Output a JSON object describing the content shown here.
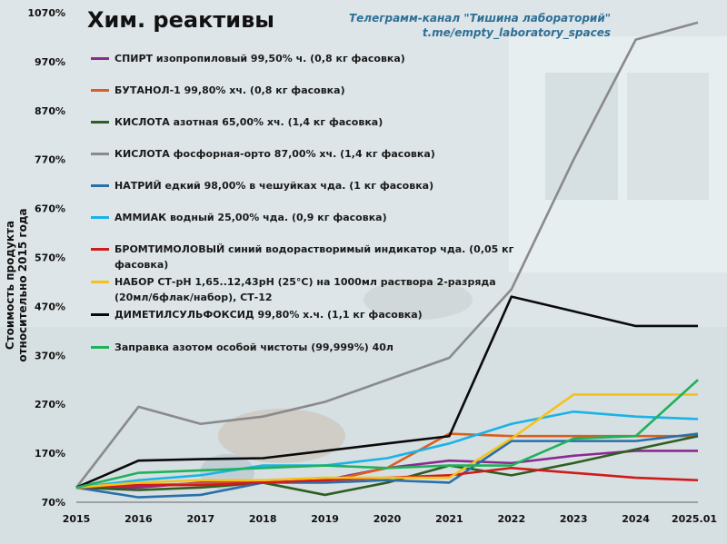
{
  "header": {
    "title": "Хим. реактивы",
    "credit_line1": "Телеграмм-канал \"Тишина лабораторий\"",
    "credit_line2": "t.me/empty_laboratory_spaces"
  },
  "chart_data": {
    "type": "line",
    "title": "Хим. реактивы",
    "xlabel": "",
    "ylabel": "Стоимость продукта относительно 2015 года",
    "x": [
      "2015",
      "2016",
      "2017",
      "2018",
      "2019",
      "2020",
      "2021",
      "2022",
      "2023",
      "2024",
      "2025.01"
    ],
    "ylim": [
      70,
      1070
    ],
    "y_ticks": [
      "70%",
      "170%",
      "270%",
      "370%",
      "470%",
      "570%",
      "670%",
      "770%",
      "870%",
      "970%",
      "1070%"
    ],
    "grid": false,
    "legend_position": "top-left",
    "series": [
      {
        "name": "СПИРТ изопропиловый 99,50% ч. (0,8 кг фасовка)",
        "color": "#8b2a8f",
        "values": [
          100,
          100,
          110,
          110,
          115,
          140,
          155,
          150,
          165,
          175,
          175
        ]
      },
      {
        "name": "БУТАНОЛ-1 99,80% хч. (0,8 кг фасовка)",
        "color": "#d95f1e",
        "values": [
          100,
          105,
          108,
          110,
          112,
          140,
          210,
          205,
          205,
          205,
          205
        ]
      },
      {
        "name": "КИСЛОТА азотная 65,00% хч. (1,4 кг фасовка)",
        "color": "#2e5e22",
        "values": [
          100,
          95,
          100,
          110,
          85,
          110,
          145,
          125,
          150,
          178,
          205
        ]
      },
      {
        "name": "КИСЛОТА фосфорная-орто 87,00% хч. (1,4 кг фасовка)",
        "color": "#8a8a8a",
        "values": [
          100,
          265,
          230,
          245,
          275,
          320,
          365,
          505,
          770,
          1015,
          1050
        ]
      },
      {
        "name": "НАТРИЙ едкий 98,00% в чешуйках чда. (1 кг фасовка)",
        "color": "#2a6fa8",
        "values": [
          100,
          80,
          85,
          110,
          110,
          115,
          110,
          195,
          195,
          195,
          210
        ]
      },
      {
        "name": "АММИАК водный 25,00% чда. (0,9 кг фасовка)",
        "color": "#19b3e6",
        "values": [
          100,
          115,
          125,
          145,
          145,
          160,
          190,
          230,
          255,
          245,
          240
        ]
      },
      {
        "name": "БРОМТИМОЛОВЫЙ синий водорастворимый индикатор чда. (0,05 кг фасовка)",
        "color": "#d11a1a",
        "values": [
          100,
          105,
          105,
          110,
          115,
          120,
          125,
          140,
          130,
          120,
          115
        ]
      },
      {
        "name": "НАБОР СТ-pH 1,65..12,43pH (25°C) на 1000мл раствора 2-разряда (20мл/6флак/набор), СТ-12",
        "color": "#f4c21a",
        "values": [
          100,
          110,
          115,
          115,
          120,
          120,
          120,
          200,
          290,
          290,
          290
        ]
      },
      {
        "name": "ДИМЕТИЛСУЛЬФОКСИД 99,80% х.ч. (1,1 кг фасовка)",
        "color": "#0a0a0a",
        "values": [
          100,
          155,
          158,
          160,
          175,
          190,
          205,
          490,
          460,
          430,
          430
        ]
      },
      {
        "name": "Заправка азотом особой чистоты (99,999%) 40л",
        "color": "#1fb25a",
        "values": [
          100,
          130,
          135,
          140,
          145,
          140,
          145,
          145,
          200,
          205,
          320
        ]
      }
    ]
  }
}
